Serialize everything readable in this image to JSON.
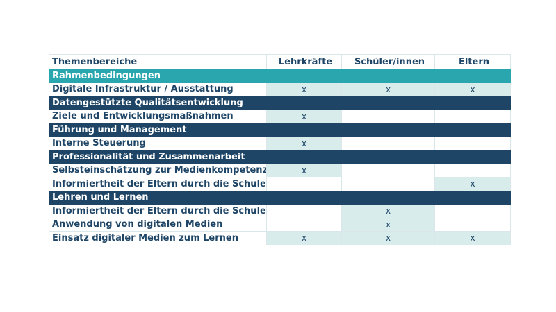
{
  "table": {
    "headers": [
      "Themenbereiche",
      "Lehrkräfte",
      "Schüler/innen",
      "Eltern"
    ],
    "sections": [
      {
        "title": "Rahmenbedingungen",
        "style": "teal",
        "rows": [
          {
            "label": "Digitale Infrastruktur / Ausstattung",
            "marks": [
              "x",
              "x",
              "x"
            ]
          }
        ]
      },
      {
        "title": "Datengestützte Qualitätsentwicklung",
        "style": "navy",
        "rows": [
          {
            "label": "Ziele und Entwicklungsmaßnahmen",
            "marks": [
              "x",
              "",
              ""
            ]
          }
        ]
      },
      {
        "title": "Führung und Management",
        "style": "navy",
        "rows": [
          {
            "label": "Interne Steuerung",
            "marks": [
              "x",
              "",
              ""
            ]
          }
        ]
      },
      {
        "title": "Professionalität und Zusammenarbeit",
        "style": "navy",
        "rows": [
          {
            "label": "Selbsteinschätzung zur Medienkompetenz",
            "marks": [
              "x",
              "",
              ""
            ]
          },
          {
            "label": "Informiertheit der Eltern durch die Schule",
            "marks": [
              "",
              "",
              "x"
            ]
          }
        ]
      },
      {
        "title": "Lehren und Lernen",
        "style": "navy",
        "rows": [
          {
            "label": "Informiertheit der Eltern durch die Schule",
            "marks": [
              "",
              "x",
              ""
            ]
          },
          {
            "label": "Anwendung von digitalen Medien",
            "marks": [
              "",
              "x",
              ""
            ]
          },
          {
            "label": "Einsatz digitaler Medien zum Lernen",
            "marks": [
              "x",
              "x",
              "x"
            ]
          }
        ]
      }
    ]
  },
  "colors": {
    "teal": "#2aa6ae",
    "navy": "#1e4566",
    "mark_fill": "#d8ecec",
    "text": "#1e4566"
  }
}
